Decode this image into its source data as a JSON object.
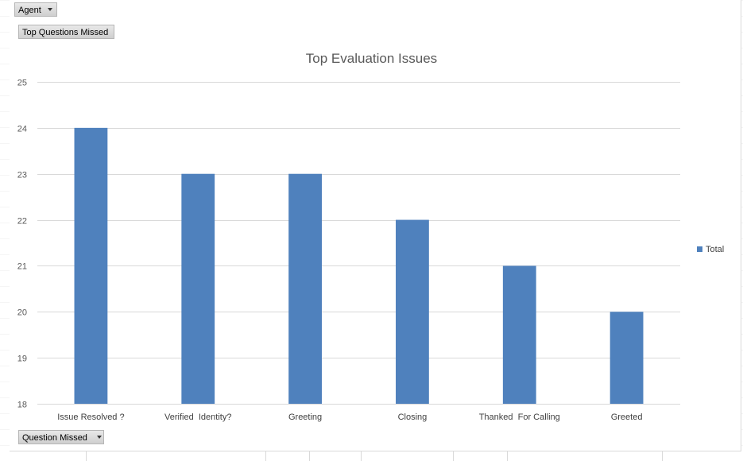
{
  "filters": {
    "agent_label": "Agent",
    "top_questions_label": "Top Questions Missed",
    "question_missed_label": "Question Missed"
  },
  "legend": {
    "series_name": "Total"
  },
  "colors": {
    "bar": "#4f81bd",
    "gridline": "#d9d9d9",
    "axis_text": "#595959"
  },
  "chart_data": {
    "type": "bar",
    "title": "Top Evaluation Issues",
    "xlabel": "",
    "ylabel": "",
    "ylim": [
      18,
      25
    ],
    "yticks": [
      18,
      19,
      20,
      21,
      22,
      23,
      24,
      25
    ],
    "grid": true,
    "legend_position": "right",
    "categories": [
      "Issue Resolved ?",
      "Verified  Identity?",
      "Greeting",
      "Closing",
      "Thanked  For Calling",
      "Greeted"
    ],
    "series": [
      {
        "name": "Total",
        "values": [
          24,
          23,
          23,
          22,
          21,
          20
        ]
      }
    ]
  }
}
